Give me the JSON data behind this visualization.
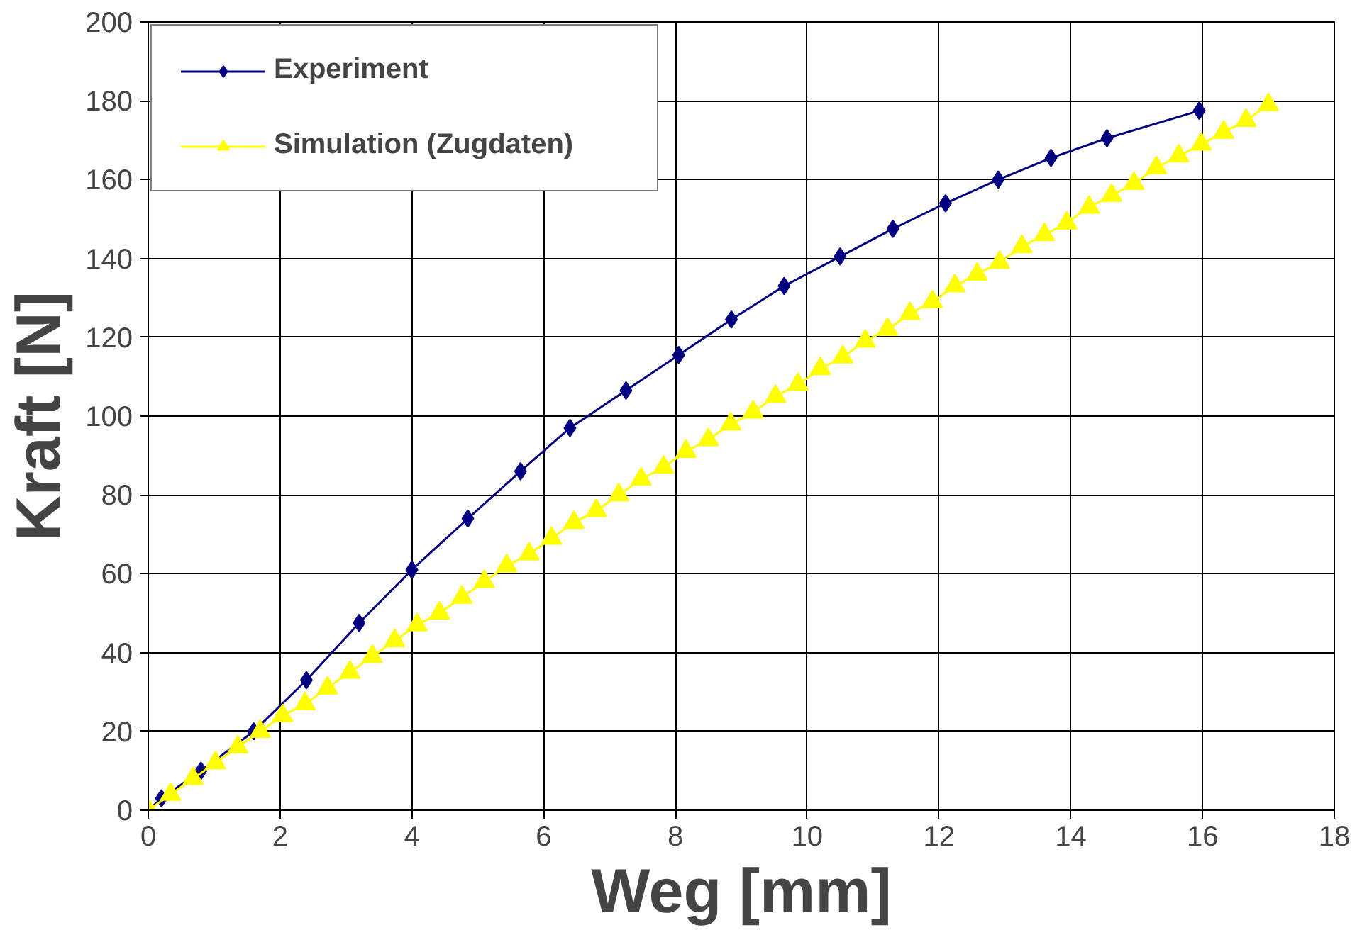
{
  "chart_data": {
    "type": "line",
    "xlabel": "Weg [mm]",
    "ylabel": "Kraft [N]",
    "xlim": [
      0,
      18
    ],
    "ylim": [
      0,
      200
    ],
    "xticks": [
      0,
      2,
      4,
      6,
      8,
      10,
      12,
      14,
      16,
      18
    ],
    "yticks": [
      0,
      20,
      40,
      60,
      80,
      100,
      120,
      140,
      160,
      180,
      200
    ],
    "grid": true,
    "legend": "top left",
    "series": [
      {
        "name": "Experiment",
        "color": "#000080",
        "marker": "diamond",
        "x": [
          0,
          0.2,
          0.8,
          1.6,
          2.4,
          3.2,
          4.0,
          4.85,
          5.65,
          6.4,
          7.25,
          8.05,
          8.85,
          9.65,
          10.5,
          11.3,
          12.1,
          12.9,
          13.7,
          14.55,
          15.95
        ],
        "values": [
          0,
          3,
          10,
          20,
          33,
          47.5,
          61,
          74,
          86,
          97,
          106.5,
          115.5,
          124.5,
          133,
          140.5,
          147.5,
          154,
          160,
          165.5,
          170.5,
          177.5
        ]
      },
      {
        "name": "Simulation (Zugdaten)",
        "color": "#ffff00",
        "marker": "triangle",
        "x": [
          0,
          0.34,
          0.68,
          1.02,
          1.36,
          1.7,
          2.04,
          2.38,
          2.72,
          3.06,
          3.4,
          3.74,
          4.08,
          4.42,
          4.76,
          5.1,
          5.44,
          5.78,
          6.12,
          6.46,
          6.8,
          7.14,
          7.48,
          7.82,
          8.16,
          8.5,
          8.84,
          9.18,
          9.52,
          9.86,
          10.2,
          10.54,
          10.88,
          11.22,
          11.56,
          11.9,
          12.24,
          12.58,
          12.92,
          13.26,
          13.6,
          13.94,
          14.28,
          14.62,
          14.96,
          15.3,
          15.64,
          15.98,
          16.32,
          16.66,
          17.0
        ],
        "values": [
          0,
          4,
          8,
          12,
          16,
          20,
          24,
          27,
          31,
          35,
          39,
          43,
          47,
          50,
          54,
          58,
          62,
          65,
          69,
          73,
          76,
          80,
          84,
          87,
          91,
          94,
          98,
          101,
          105,
          108,
          112,
          115,
          119,
          122,
          126,
          129,
          133,
          136,
          139,
          143,
          146,
          149,
          153,
          156,
          159,
          163,
          166,
          169,
          172,
          175,
          179
        ]
      }
    ]
  }
}
